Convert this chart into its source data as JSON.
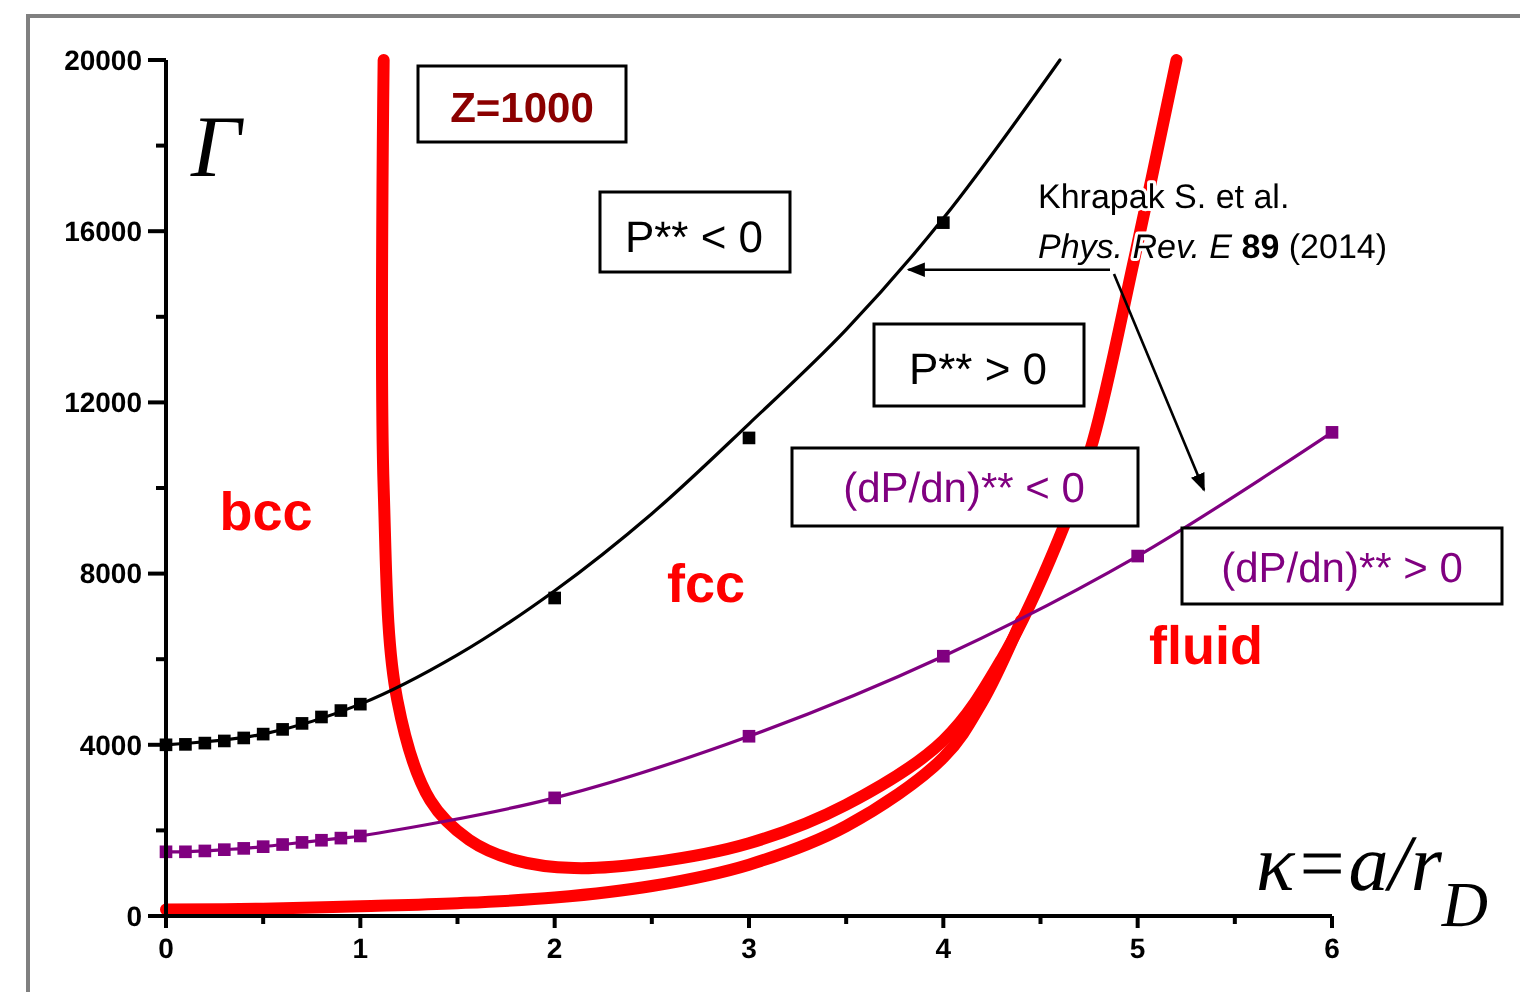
{
  "chart_data": {
    "type": "line",
    "xlabel": "κ=a/r$_{D}$",
    "ylabel": "Γ",
    "xlim": [
      0,
      6
    ],
    "ylim": [
      0,
      20000
    ],
    "xticks": [
      0,
      {
        "value": 0.5,
        "label": null
      },
      1,
      {
        "value": 1.5,
        "label": null
      },
      2,
      {
        "value": 2.5,
        "label": null
      },
      3,
      {
        "value": 3.5,
        "label": null
      },
      4,
      {
        "value": 4.5,
        "label": null
      },
      5,
      {
        "value": 5.5,
        "label": null
      },
      6
    ],
    "yticks": [
      0,
      {
        "value": 2000,
        "label": null
      },
      4000,
      {
        "value": 6000,
        "label": null
      },
      8000,
      {
        "value": 10000,
        "label": null
      },
      12000,
      {
        "value": 14000,
        "label": null
      },
      16000,
      {
        "value": 18000,
        "label": null
      },
      20000
    ],
    "grid": false,
    "series": [
      {
        "color": "#ff0000",
        "marker": "none",
        "x": [
          1.12,
          1.12,
          1.19,
          1.36,
          1.56,
          1.8,
          2.1,
          2.5,
          3,
          3.5,
          4,
          4.3,
          4.62,
          4.77,
          4.98,
          5.2
        ],
        "values": [
          20000,
          10000,
          5050,
          2700,
          1780,
          1300,
          1120,
          1250,
          1700,
          2600,
          4100,
          6000,
          9100,
          11100,
          15300,
          20000
        ]
      },
      {
        "color": "#ff0000",
        "marker": "none",
        "x": [
          0,
          0.5,
          1,
          1.5,
          2,
          2.5,
          3,
          3.5,
          4,
          4.2,
          4.4
        ],
        "values": [
          150,
          170,
          230,
          300,
          430,
          700,
          1200,
          2100,
          3700,
          5000,
          6900
        ]
      },
      {
        "color": "#000000",
        "marker": "none",
        "x": [
          0,
          0.5,
          1,
          1.5,
          2,
          2.5,
          3,
          3.5,
          4,
          4.6
        ],
        "values": [
          4000,
          4250,
          4950,
          6100,
          7600,
          9400,
          11500,
          13700,
          16300,
          20000
        ]
      },
      {
        "type": "scatter",
        "color": "#000000",
        "marker": "square",
        "x": [
          0,
          0.1,
          0.2,
          0.3,
          0.4,
          0.5,
          0.6,
          0.7,
          0.8,
          0.9,
          1,
          2,
          3,
          4
        ],
        "values": [
          4000,
          4010,
          4040,
          4090,
          4160,
          4250,
          4360,
          4500,
          4650,
          4800,
          4950,
          7430,
          11170,
          16200
        ]
      },
      {
        "color": "#800080",
        "marker": "square",
        "x": [
          0,
          0.1,
          0.2,
          0.3,
          0.4,
          0.5,
          0.6,
          0.7,
          0.8,
          0.9,
          1,
          2,
          3,
          4,
          5,
          6
        ],
        "values": [
          1500,
          1500,
          1520,
          1550,
          1580,
          1620,
          1670,
          1720,
          1770,
          1820,
          1870,
          2760,
          4200,
          6070,
          8410,
          11300
        ]
      }
    ],
    "annotations": [
      "Z=1000",
      "P** < 0",
      "P** > 0",
      "(dP/dn)** < 0",
      "(dP/dn)** > 0",
      "bcc",
      "fcc",
      "fluid",
      "Khrapak S. et al.",
      {
        "text": "Phys. Rev. E 89 (2014)",
        "x": 3.8,
        "y": 15100
      }
    ]
  }
}
